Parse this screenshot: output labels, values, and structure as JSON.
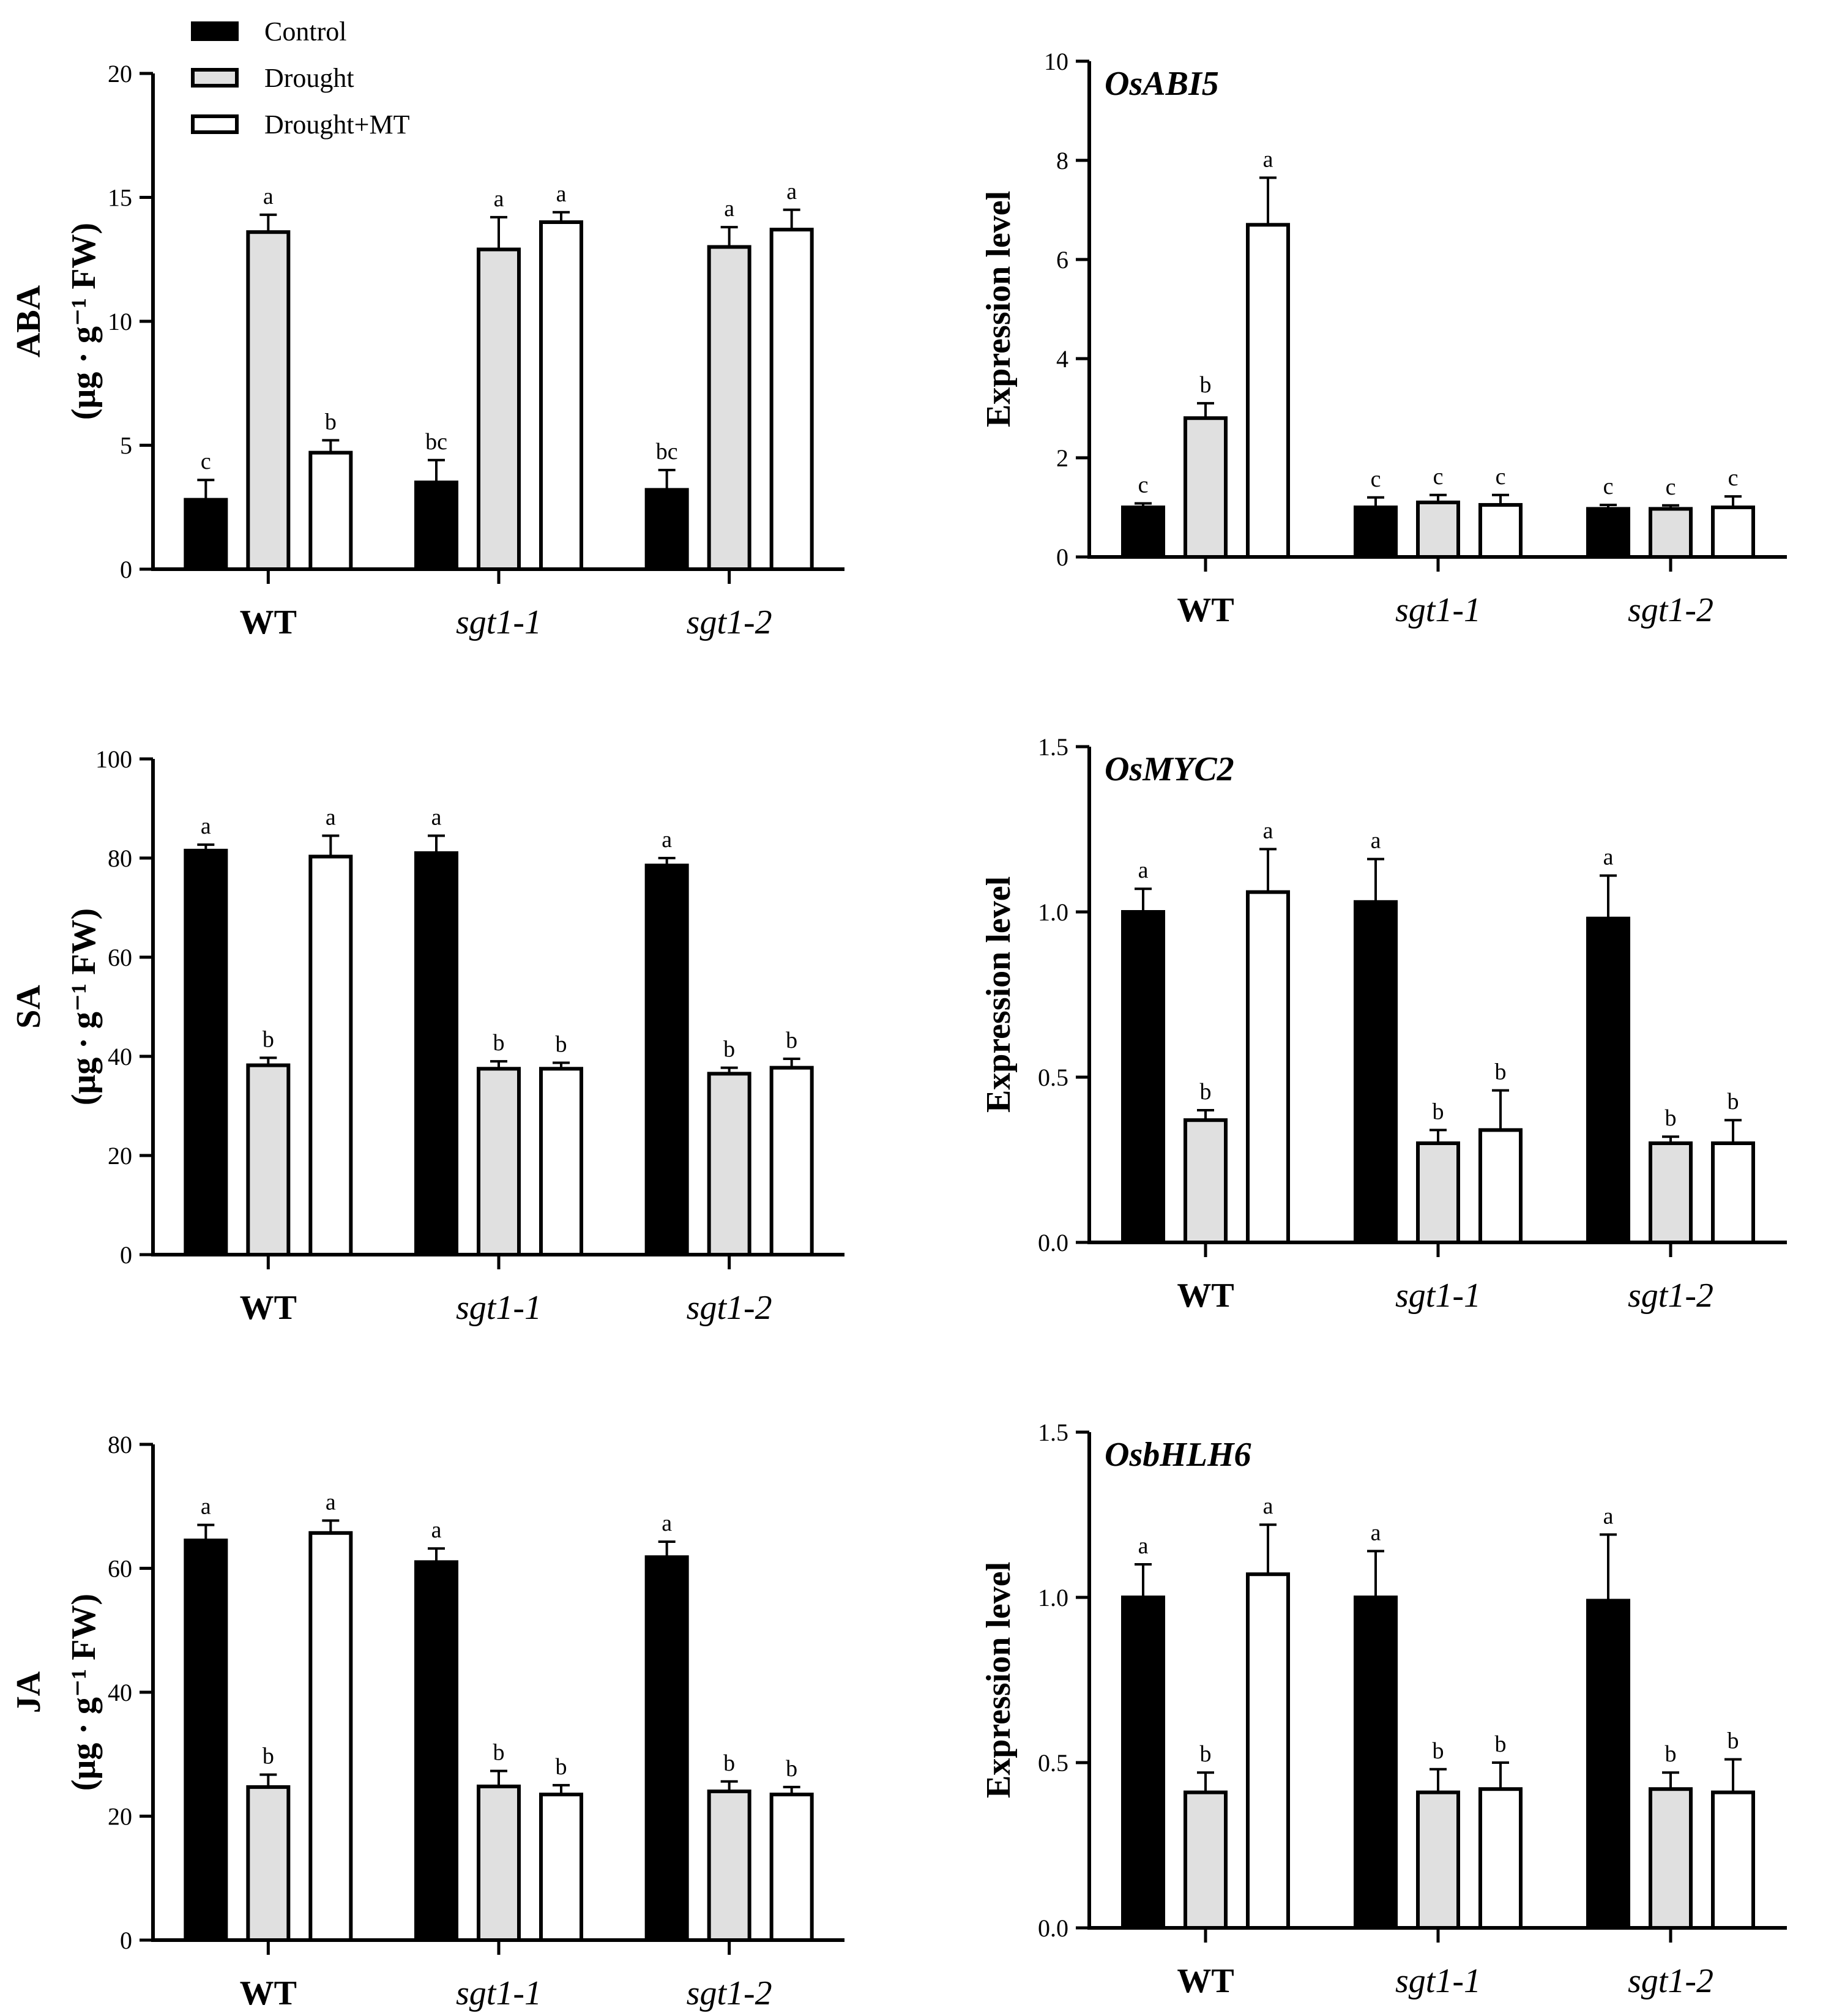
{
  "legend": {
    "entries": [
      {
        "name": "Control",
        "fill": "#000000"
      },
      {
        "name": "Drought",
        "fill": "#e0e0e0"
      },
      {
        "name": "Drought+MT",
        "fill": "#ffffff"
      }
    ]
  },
  "categories": [
    "WT",
    "sgt1-1",
    "sgt1-2"
  ],
  "chart_data": [
    {
      "id": "aba",
      "type": "bar",
      "title": "",
      "ylabel_lines": [
        "ABA",
        "(μg · g⁻¹ FW)"
      ],
      "ylim": [
        0,
        20
      ],
      "ticks": [
        0,
        5,
        10,
        15,
        20
      ],
      "decimals": 0,
      "categories": [
        "WT",
        "sgt1-1",
        "sgt1-2"
      ],
      "series": [
        {
          "name": "Control",
          "values": [
            2.8,
            3.5,
            3.2
          ],
          "errors": [
            0.8,
            0.9,
            0.8
          ],
          "letters": [
            "c",
            "bc",
            "bc"
          ]
        },
        {
          "name": "Drought",
          "values": [
            13.6,
            12.9,
            13.0
          ],
          "errors": [
            0.7,
            1.3,
            0.8
          ],
          "letters": [
            "a",
            "a",
            "a"
          ]
        },
        {
          "name": "Drought+MT",
          "values": [
            4.7,
            14.0,
            13.7
          ],
          "errors": [
            0.5,
            0.4,
            0.8
          ],
          "letters": [
            "b",
            "a",
            "a"
          ]
        }
      ]
    },
    {
      "id": "abi5",
      "type": "bar",
      "title": "OsABI5",
      "ylabel_lines": [
        "Expression level"
      ],
      "ylim": [
        0,
        10
      ],
      "ticks": [
        0,
        2,
        4,
        6,
        8,
        10
      ],
      "decimals": 0,
      "categories": [
        "WT",
        "sgt1-1",
        "sgt1-2"
      ],
      "series": [
        {
          "name": "Control",
          "values": [
            1.0,
            1.0,
            0.97
          ],
          "errors": [
            0.08,
            0.2,
            0.08
          ],
          "letters": [
            "c",
            "c",
            "c"
          ]
        },
        {
          "name": "Drought",
          "values": [
            2.8,
            1.1,
            0.97
          ],
          "errors": [
            0.3,
            0.15,
            0.07
          ],
          "letters": [
            "b",
            "c",
            "c"
          ]
        },
        {
          "name": "Drought+MT",
          "values": [
            6.7,
            1.05,
            1.0
          ],
          "errors": [
            0.95,
            0.2,
            0.22
          ],
          "letters": [
            "a",
            "c",
            "c"
          ]
        }
      ]
    },
    {
      "id": "sa",
      "type": "bar",
      "title": "",
      "ylabel_lines": [
        "SA",
        "(μg · g⁻¹ FW)"
      ],
      "ylim": [
        0,
        100
      ],
      "ticks": [
        0,
        20,
        40,
        60,
        80,
        100
      ],
      "decimals": 0,
      "categories": [
        "WT",
        "sgt1-1",
        "sgt1-2"
      ],
      "series": [
        {
          "name": "Control",
          "values": [
            81.5,
            81.0,
            78.5
          ],
          "errors": [
            1.2,
            3.5,
            1.5
          ],
          "letters": [
            "a",
            "a",
            "a"
          ]
        },
        {
          "name": "Drought",
          "values": [
            38.2,
            37.5,
            36.5
          ],
          "errors": [
            1.5,
            1.5,
            1.2
          ],
          "letters": [
            "b",
            "b",
            "b"
          ]
        },
        {
          "name": "Drought+MT",
          "values": [
            80.3,
            37.5,
            37.7
          ],
          "errors": [
            4.2,
            1.2,
            1.8
          ],
          "letters": [
            "a",
            "b",
            "b"
          ]
        }
      ]
    },
    {
      "id": "myc2",
      "type": "bar",
      "title": "OsMYC2",
      "ylabel_lines": [
        "Expression level"
      ],
      "ylim": [
        0,
        1.5
      ],
      "ticks": [
        0,
        0.5,
        1.0,
        1.5
      ],
      "decimals": 1,
      "categories": [
        "WT",
        "sgt1-1",
        "sgt1-2"
      ],
      "series": [
        {
          "name": "Control",
          "values": [
            1.0,
            1.03,
            0.98
          ],
          "errors": [
            0.07,
            0.13,
            0.13
          ],
          "letters": [
            "a",
            "a",
            "a"
          ]
        },
        {
          "name": "Drought",
          "values": [
            0.37,
            0.3,
            0.3
          ],
          "errors": [
            0.03,
            0.04,
            0.02
          ],
          "letters": [
            "b",
            "b",
            "b"
          ]
        },
        {
          "name": "Drought+MT",
          "values": [
            1.06,
            0.34,
            0.3
          ],
          "errors": [
            0.13,
            0.12,
            0.07
          ],
          "letters": [
            "a",
            "b",
            "b"
          ]
        }
      ]
    },
    {
      "id": "ja",
      "type": "bar",
      "title": "",
      "ylabel_lines": [
        "JA",
        "(μg · g⁻¹ FW)"
      ],
      "ylim": [
        0,
        80
      ],
      "ticks": [
        0,
        20,
        40,
        60,
        80
      ],
      "decimals": 0,
      "categories": [
        "WT",
        "sgt1-1",
        "sgt1-2"
      ],
      "series": [
        {
          "name": "Control",
          "values": [
            64.5,
            61.0,
            61.8
          ],
          "errors": [
            2.5,
            2.2,
            2.5
          ],
          "letters": [
            "a",
            "a",
            "a"
          ]
        },
        {
          "name": "Drought",
          "values": [
            24.7,
            24.8,
            24.0
          ],
          "errors": [
            2.0,
            2.5,
            1.6
          ],
          "letters": [
            "b",
            "b",
            "b"
          ]
        },
        {
          "name": "Drought+MT",
          "values": [
            65.7,
            23.5,
            23.5
          ],
          "errors": [
            2.0,
            1.5,
            1.2
          ],
          "letters": [
            "a",
            "b",
            "b"
          ]
        }
      ]
    },
    {
      "id": "bhlh6",
      "type": "bar",
      "title": "OsbHLH6",
      "ylabel_lines": [
        "Expression level"
      ],
      "ylim": [
        0,
        1.5
      ],
      "ticks": [
        0,
        0.5,
        1.0,
        1.5
      ],
      "decimals": 1,
      "categories": [
        "WT",
        "sgt1-1",
        "sgt1-2"
      ],
      "series": [
        {
          "name": "Control",
          "values": [
            1.0,
            1.0,
            0.99
          ],
          "errors": [
            0.1,
            0.14,
            0.2
          ],
          "letters": [
            "a",
            "a",
            "a"
          ]
        },
        {
          "name": "Drought",
          "values": [
            0.41,
            0.41,
            0.42
          ],
          "errors": [
            0.06,
            0.07,
            0.05
          ],
          "letters": [
            "b",
            "b",
            "b"
          ]
        },
        {
          "name": "Drought+MT",
          "values": [
            1.07,
            0.42,
            0.41
          ],
          "errors": [
            0.15,
            0.08,
            0.1
          ],
          "letters": [
            "a",
            "b",
            "b"
          ]
        }
      ]
    }
  ]
}
